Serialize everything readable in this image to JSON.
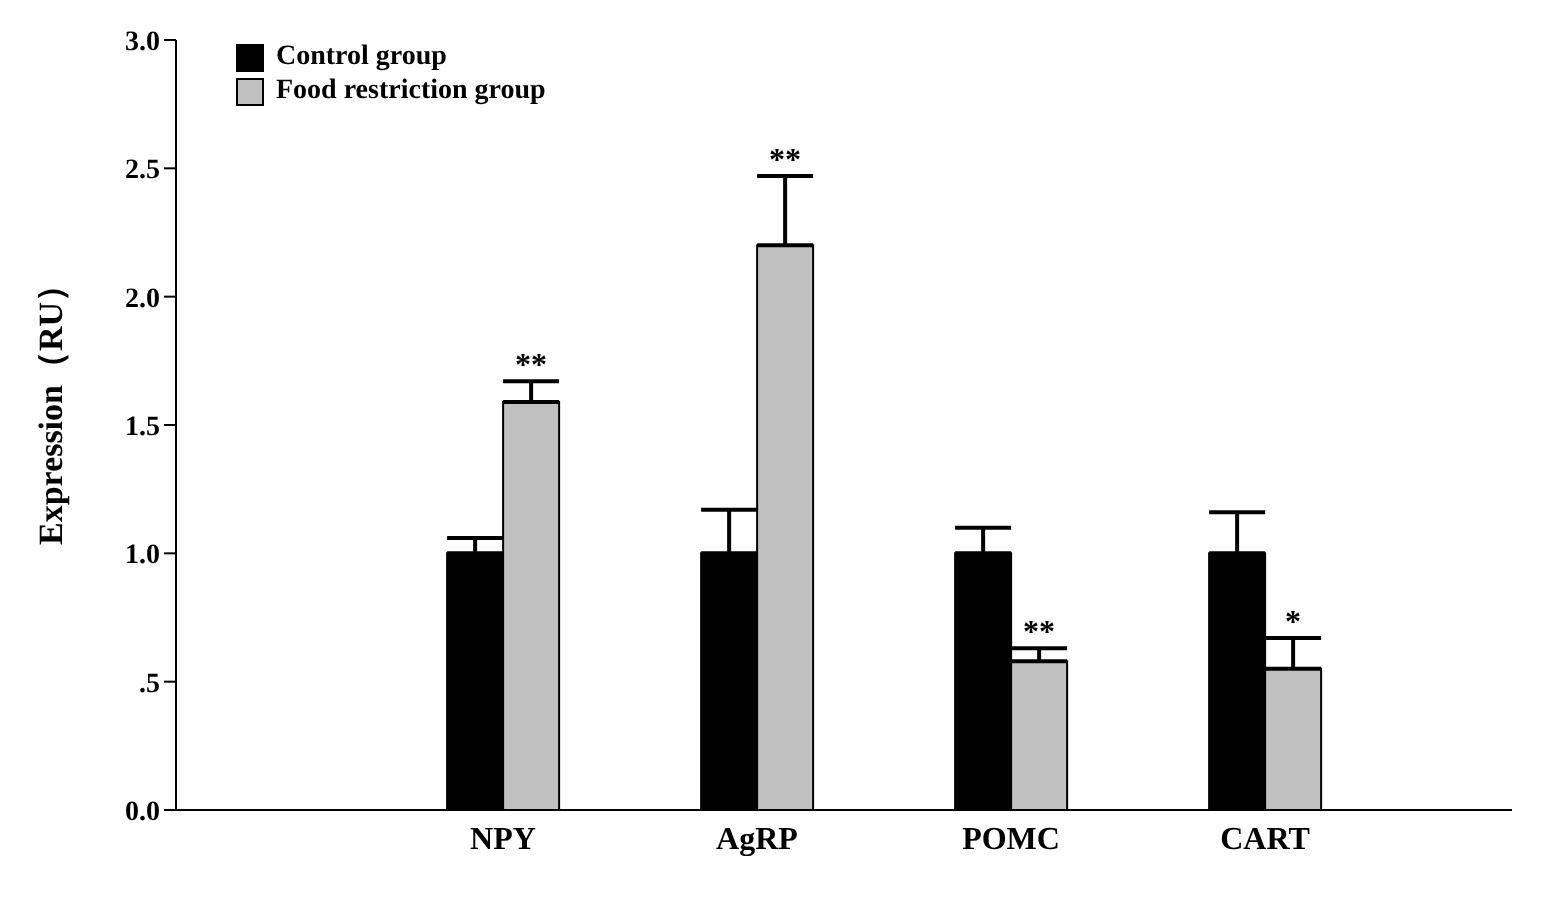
{
  "chart_data": {
    "type": "bar",
    "ylabel": "Expression（RU）",
    "categories": [
      "NPY",
      "AgRP",
      "POMC",
      "CART"
    ],
    "series": [
      {
        "name": "Control group",
        "color": "#000000",
        "values": [
          1.0,
          1.0,
          1.0,
          1.0
        ],
        "errors": [
          [
            1.0,
            1.06
          ],
          [
            1.0,
            1.17
          ],
          [
            1.0,
            1.1
          ],
          [
            1.0,
            1.16
          ]
        ]
      },
      {
        "name": "Food restriction group",
        "color": "#c0c0c0",
        "values": [
          1.59,
          2.2,
          0.58,
          0.55
        ],
        "errors": [
          [
            1.59,
            1.67
          ],
          [
            2.2,
            2.47
          ],
          [
            0.58,
            0.63
          ],
          [
            0.55,
            0.67
          ]
        ]
      }
    ],
    "ylim": [
      0,
      3
    ],
    "yticks": [
      {
        "value": 0,
        "label": "0.0"
      },
      {
        "value": 0.5,
        "label": ".5"
      },
      {
        "value": 1,
        "label": "1.0"
      },
      {
        "value": 1.5,
        "label": "1.5"
      },
      {
        "value": 2,
        "label": "2.0"
      },
      {
        "value": 2.5,
        "label": "2.5"
      },
      {
        "value": 3,
        "label": "3.0"
      }
    ],
    "annotations": [
      "**",
      "**",
      "**",
      "*"
    ],
    "legend": "top left",
    "grid": false
  }
}
